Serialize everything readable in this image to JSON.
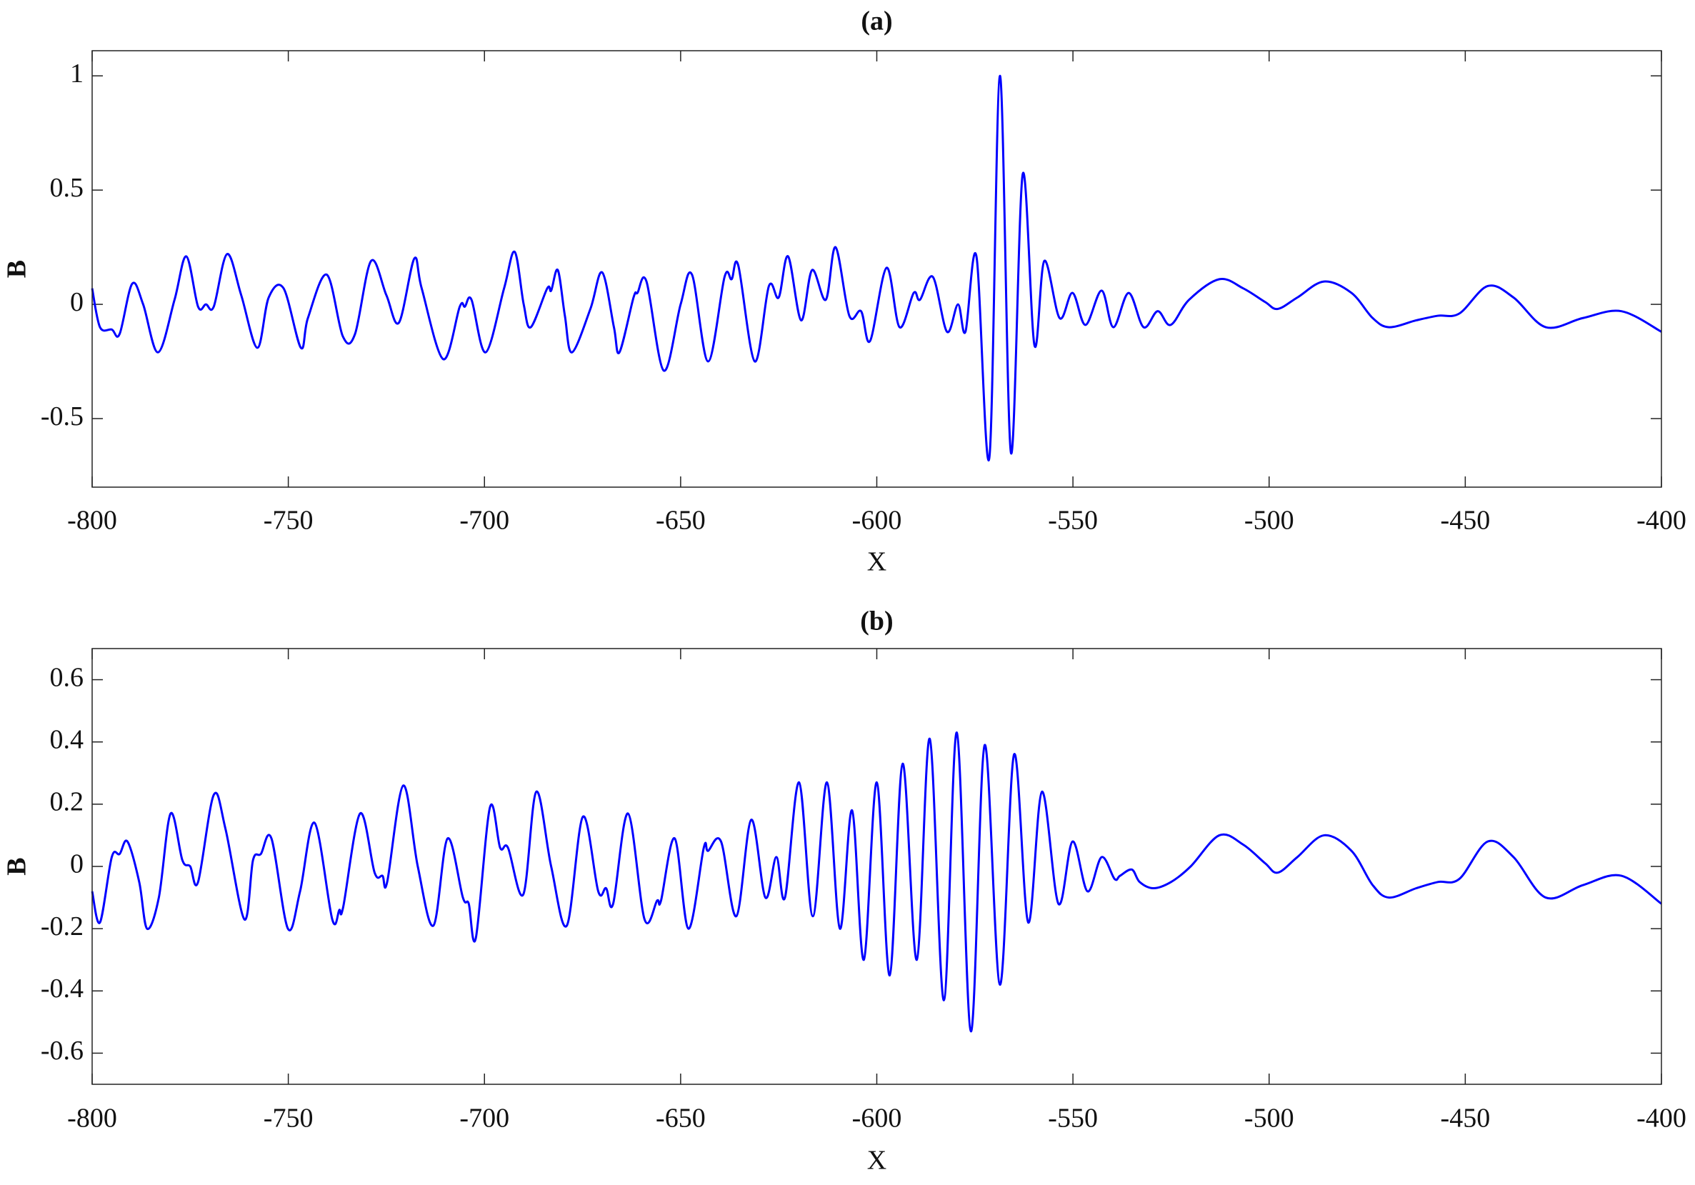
{
  "chart_data": [
    {
      "type": "line",
      "title": "(a)",
      "xlabel": "X",
      "ylabel": "B",
      "color": "#0000ff",
      "xlim": [
        -800,
        -400
      ],
      "xticks": [
        -800,
        -750,
        -700,
        -650,
        -600,
        -550,
        -500,
        -450,
        -400
      ],
      "ylim": [
        -0.8,
        1.11
      ],
      "yticks": [
        -0.5,
        0,
        0.5,
        1
      ],
      "x": [
        -800,
        -798,
        -795,
        -793,
        -789.8,
        -787,
        -783.2,
        -779,
        -776,
        -773,
        -771,
        -769,
        -765.6,
        -762,
        -757.9,
        -755,
        -751.2,
        -746.8,
        -745,
        -740.2,
        -736.1,
        -733,
        -728.9,
        -725,
        -721.8,
        -717.9,
        -716,
        -710.5,
        -706.3,
        -705,
        -703.3,
        -699.7,
        -695,
        -692.3,
        -690,
        -688.2,
        -684,
        -683,
        -681.3,
        -679.5,
        -677.7,
        -673,
        -670,
        -667,
        -665.6,
        -662,
        -661,
        -658.7,
        -654.3,
        -650,
        -647.1,
        -643,
        -638.8,
        -637,
        -635.3,
        -631.1,
        -627.5,
        -625,
        -622.6,
        -619.3,
        -616.5,
        -613,
        -610.5,
        -607,
        -604,
        -601.7,
        -597.5,
        -594.2,
        -590.6,
        -589,
        -585.7,
        -582.1,
        -579.3,
        -577.4,
        -574.6,
        -571.3,
        -568.6,
        -565.8,
        -562.8,
        -559.8,
        -557.3,
        -553.4,
        -550.1,
        -546.8,
        -542.7,
        -539.7,
        -535.8,
        -532,
        -528.4,
        -525.1,
        -520.4,
        -512.7,
        -506.6,
        -501,
        -497.8,
        -492.8,
        -486,
        -479,
        -473.6,
        -469.4,
        -462.5,
        -457,
        -451.5,
        -444.3,
        -437.7,
        -429.5,
        -420,
        -410.2,
        -400
      ],
      "values": [
        0.07,
        -0.1,
        -0.11,
        -0.13,
        0.09,
        0.0,
        -0.21,
        0.02,
        0.21,
        -0.01,
        0.0,
        -0.01,
        0.22,
        0.04,
        -0.19,
        0.03,
        0.07,
        -0.19,
        -0.06,
        0.13,
        -0.14,
        -0.13,
        0.19,
        0.04,
        -0.08,
        0.2,
        0.07,
        -0.24,
        -0.01,
        -0.01,
        0.02,
        -0.21,
        0.07,
        0.23,
        0.0,
        -0.1,
        0.07,
        0.06,
        0.15,
        -0.05,
        -0.21,
        -0.02,
        0.14,
        -0.1,
        -0.21,
        0.03,
        0.05,
        0.1,
        -0.29,
        0.0,
        0.13,
        -0.25,
        0.12,
        0.11,
        0.17,
        -0.25,
        0.08,
        0.03,
        0.21,
        -0.07,
        0.15,
        0.02,
        0.25,
        -0.05,
        -0.03,
        -0.16,
        0.16,
        -0.1,
        0.05,
        0.02,
        0.12,
        -0.12,
        0.0,
        -0.12,
        0.21,
        -0.67,
        1.0,
        -0.65,
        0.57,
        -0.18,
        0.19,
        -0.06,
        0.05,
        -0.09,
        0.06,
        -0.1,
        0.05,
        -0.1,
        -0.03,
        -0.09,
        0.02,
        0.11,
        0.07,
        0.01,
        -0.02,
        0.03,
        0.1,
        0.05,
        -0.06,
        -0.1,
        -0.07,
        -0.05,
        -0.04,
        0.08,
        0.03,
        -0.1,
        -0.06,
        -0.03,
        -0.12
      ]
    },
    {
      "type": "line",
      "title": "(b)",
      "xlabel": "X",
      "ylabel": "B",
      "color": "#0000ff",
      "xlim": [
        -800,
        -400
      ],
      "xticks": [
        -800,
        -750,
        -700,
        -650,
        -600,
        -550,
        -500,
        -450,
        -400
      ],
      "ylim": [
        -0.7,
        0.7
      ],
      "yticks": [
        -0.6,
        -0.4,
        -0.2,
        0,
        0.2,
        0.4,
        0.6
      ],
      "x": [
        -800,
        -798,
        -795,
        -793,
        -791,
        -788,
        -786,
        -783,
        -780,
        -777,
        -775,
        -773,
        -769,
        -766,
        -761.2,
        -759,
        -757,
        -754.3,
        -750.1,
        -747,
        -743.3,
        -738.8,
        -737,
        -736,
        -731.7,
        -728,
        -726,
        -724.8,
        -720.7,
        -717,
        -713,
        -709.4,
        -705.5,
        -704,
        -702.2,
        -698.6,
        -696,
        -694,
        -690.1,
        -686.8,
        -683,
        -679,
        -674.9,
        -671,
        -669,
        -667.2,
        -663.4,
        -659.2,
        -656,
        -655,
        -651.5,
        -648,
        -644.1,
        -643,
        -639.7,
        -635.8,
        -632,
        -628.4,
        -625.6,
        -623.4,
        -619.8,
        -616.3,
        -612.7,
        -609.4,
        -606.3,
        -603.3,
        -600,
        -596.7,
        -593.4,
        -589.8,
        -586.5,
        -582.9,
        -579.6,
        -576,
        -572.5,
        -568.6,
        -565,
        -561.4,
        -557.9,
        -553.7,
        -550.1,
        -546.3,
        -542.7,
        -539.4,
        -538,
        -535,
        -533,
        -529.5,
        -525,
        -520,
        -512.7,
        -506.6,
        -501,
        -497.8,
        -492.8,
        -486,
        -479,
        -473.6,
        -469.4,
        -462.5,
        -457,
        -451.5,
        -444.3,
        -437.7,
        -429.5,
        -420,
        -410.2,
        -400
      ],
      "values": [
        -0.08,
        -0.18,
        0.03,
        0.04,
        0.08,
        -0.05,
        -0.2,
        -0.1,
        0.17,
        0.02,
        0.0,
        -0.05,
        0.23,
        0.12,
        -0.17,
        0.02,
        0.04,
        0.09,
        -0.2,
        -0.08,
        0.14,
        -0.17,
        -0.14,
        -0.13,
        0.17,
        -0.02,
        -0.03,
        -0.05,
        0.26,
        0.0,
        -0.19,
        0.09,
        -0.1,
        -0.12,
        -0.23,
        0.19,
        0.06,
        0.06,
        -0.09,
        0.24,
        0.0,
        -0.19,
        0.16,
        -0.08,
        -0.07,
        -0.12,
        0.17,
        -0.17,
        -0.11,
        -0.11,
        0.09,
        -0.2,
        0.06,
        0.05,
        0.08,
        -0.16,
        0.15,
        -0.1,
        0.03,
        -0.1,
        0.27,
        -0.16,
        0.27,
        -0.2,
        0.18,
        -0.3,
        0.27,
        -0.35,
        0.33,
        -0.3,
        0.41,
        -0.43,
        0.43,
        -0.53,
        0.39,
        -0.38,
        0.36,
        -0.18,
        0.24,
        -0.12,
        0.08,
        -0.08,
        0.03,
        -0.04,
        -0.03,
        -0.01,
        -0.05,
        -0.07,
        -0.05,
        0.0,
        0.1,
        0.07,
        0.01,
        -0.02,
        0.03,
        0.1,
        0.05,
        -0.06,
        -0.1,
        -0.07,
        -0.05,
        -0.04,
        0.08,
        0.03,
        -0.1,
        -0.06,
        -0.03,
        -0.12
      ]
    }
  ]
}
